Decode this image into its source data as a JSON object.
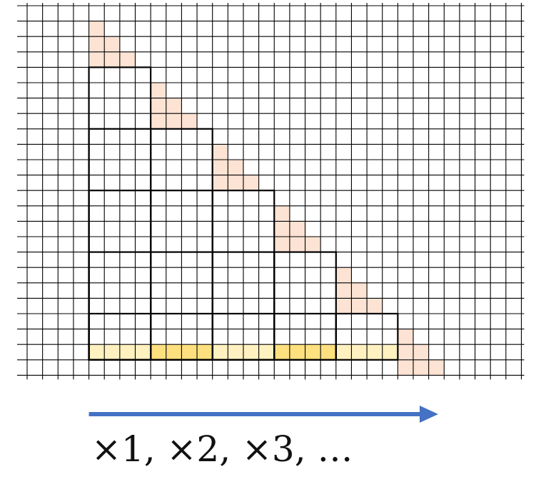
{
  "grid": {
    "columns": 32,
    "rows": 24,
    "line_color": "#000000",
    "background": "#ffffff"
  },
  "staircase": {
    "step_count": 5,
    "step_width_cells": 4,
    "step_height_cells": 4,
    "outline_color": "#000000",
    "triangle_color": "#fde3d4",
    "triangle_count": 6,
    "triangle_size_cells": 3,
    "base_strip": {
      "segment_count": 5,
      "colors": [
        "#fff1c0",
        "#ffe07f",
        "#fff1c0",
        "#ffe07f",
        "#fff1c0"
      ]
    }
  },
  "arrow": {
    "color": "#4472c4",
    "icon": "right-arrow-icon"
  },
  "caption": {
    "text": "×1, ×2, ×3, …"
  }
}
